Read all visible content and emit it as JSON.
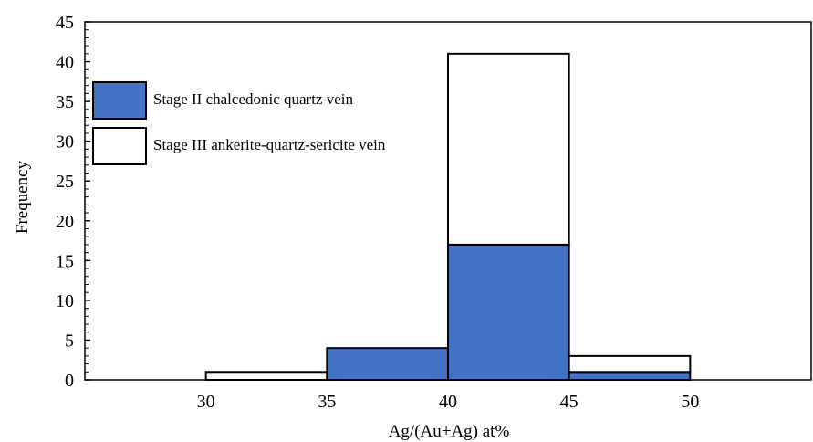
{
  "chart_data": {
    "type": "bar",
    "stacked": true,
    "xlabel": "Ag/(Au+Ag) at%",
    "ylabel": "Frequency",
    "x_ticks": [
      "30",
      "35",
      "40",
      "45",
      "50"
    ],
    "x_tick_values": [
      30,
      35,
      40,
      45,
      50
    ],
    "y_ticks": [
      "0",
      "5",
      "10",
      "15",
      "20",
      "25",
      "30",
      "35",
      "40",
      "45"
    ],
    "xlim": [
      25,
      55
    ],
    "ylim": [
      0,
      45
    ],
    "bins": [
      [
        30,
        35
      ],
      [
        35,
        40
      ],
      [
        40,
        45
      ],
      [
        45,
        50
      ]
    ],
    "series": [
      {
        "name": "Stage II chalcedonic quartz vein",
        "color": "#4472c4",
        "values": [
          0,
          4,
          17,
          1
        ]
      },
      {
        "name": "Stage III ankerite-quartz-sericite vein",
        "color": "#ffffff",
        "values": [
          1,
          0,
          24,
          2
        ]
      }
    ],
    "legend": {
      "position": "top-left"
    },
    "grid": false
  }
}
